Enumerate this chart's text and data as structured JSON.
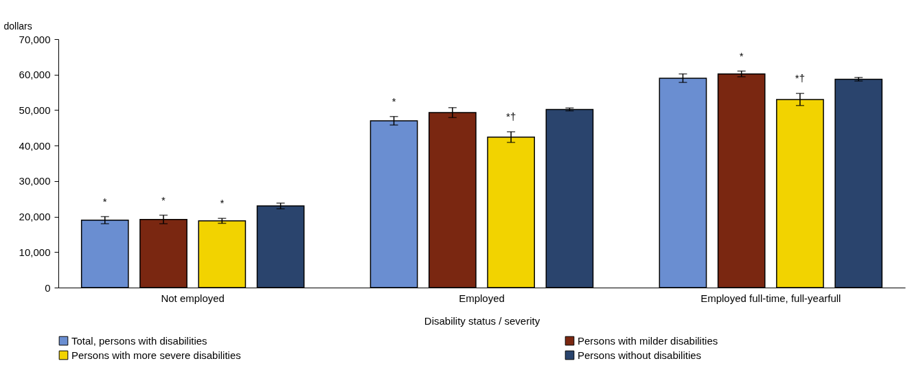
{
  "chart_data": {
    "type": "bar",
    "ylabel": "dollars",
    "xlabel": "Disability status / severity",
    "categories": [
      "Not employed",
      "Employed",
      "Employed full-time, full-yearfull"
    ],
    "series": [
      {
        "name": "Total, persons with disabilities",
        "color": "#6a8ed1",
        "values": [
          19000,
          47000,
          59000
        ],
        "errors": [
          1000,
          1200,
          1200
        ],
        "value_labels": [
          "*",
          "*",
          null
        ]
      },
      {
        "name": "Persons with milder disabilities",
        "color": "#7a2711",
        "values": [
          19200,
          49300,
          60200
        ],
        "errors": [
          1200,
          1400,
          800
        ],
        "value_labels": [
          "*",
          null,
          "*"
        ]
      },
      {
        "name": "Persons with more severe disabilities",
        "color": "#f2d300",
        "values": [
          18800,
          42400,
          53000
        ],
        "errors": [
          700,
          1500,
          1700
        ],
        "value_labels": [
          "*",
          "*†",
          "*†"
        ]
      },
      {
        "name": "Persons without disabilities",
        "color": "#2a446d",
        "values": [
          23000,
          50200,
          58700
        ],
        "errors": [
          800,
          400,
          500
        ]
      }
    ],
    "ylim": [
      0,
      70000
    ],
    "yticks": [
      0,
      {
        "value": 10000,
        "label": "10,000"
      },
      {
        "value": 20000,
        "label": "20,000"
      },
      {
        "value": 30000,
        "label": "30,000"
      },
      {
        "value": 40000,
        "label": "40,000"
      },
      {
        "value": 50000,
        "label": "50,000"
      },
      {
        "value": 60000,
        "label": "60,000"
      },
      {
        "value": 70000,
        "label": "70,000"
      }
    ],
    "grid": false,
    "legend": "bottom"
  }
}
